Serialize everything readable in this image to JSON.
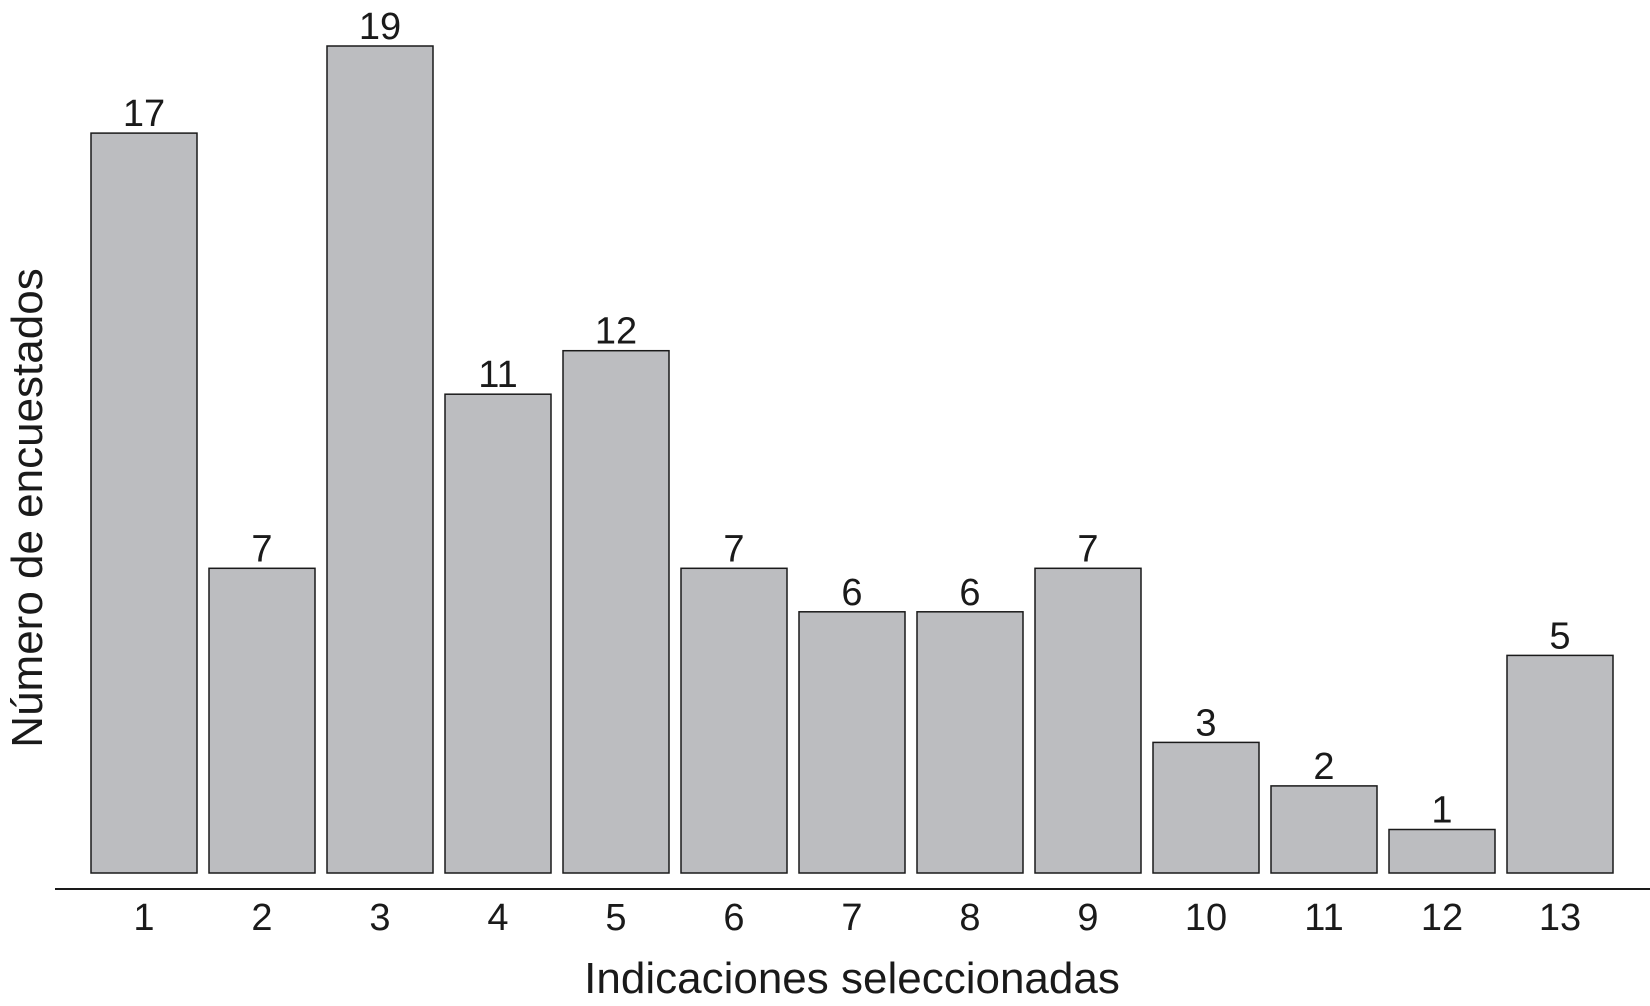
{
  "chart_data": {
    "type": "bar",
    "categories": [
      "1",
      "2",
      "3",
      "4",
      "5",
      "6",
      "7",
      "8",
      "9",
      "10",
      "11",
      "12",
      "13"
    ],
    "values": [
      17,
      7,
      19,
      11,
      12,
      7,
      6,
      6,
      7,
      3,
      2,
      1,
      5
    ],
    "title": "",
    "xlabel": "Indicaciones seleccionadas",
    "ylabel": "Número de encuestados",
    "ylim": [
      0,
      19
    ],
    "grid": false,
    "legend": "none",
    "colors": {
      "bar_fill": "#bcbdc0",
      "bar_stroke": "#1a1a1a",
      "text": "#1a1a1a"
    }
  }
}
